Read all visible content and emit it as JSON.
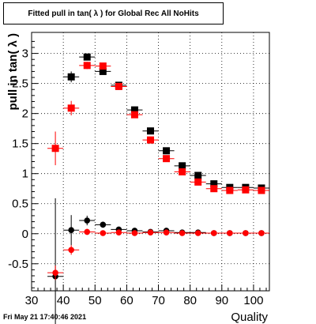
{
  "chart_data": {
    "type": "scatter",
    "title": "Fitted pull in tan( λ ) for Global Rec All NoHits",
    "xlabel": "Quality",
    "ylabel": "pull in tan( λ )",
    "xlim": [
      30,
      105
    ],
    "ylim": [
      -0.95,
      3.35
    ],
    "xticks": [
      30,
      40,
      50,
      60,
      70,
      80,
      90,
      100
    ],
    "yticks": [
      -0.5,
      0,
      0.5,
      1,
      1.5,
      2,
      2.5,
      3
    ],
    "grid": true,
    "series": [
      {
        "marker": "square",
        "color": "#000000",
        "x": [
          42.5,
          47.5,
          52.5,
          57.5,
          62.5,
          67.5,
          72.5,
          77.5,
          82.5,
          87.5,
          92.5,
          97.5,
          102.5
        ],
        "y": [
          2.61,
          2.94,
          2.7,
          2.47,
          2.06,
          1.71,
          1.38,
          1.13,
          0.97,
          0.83,
          0.77,
          0.77,
          0.76
        ],
        "yerr": [
          0.09,
          0.05,
          0.04,
          0.03,
          0.03,
          0.02,
          0.02,
          0.02,
          0.01,
          0.01,
          0.01,
          0.01,
          0.01
        ]
      },
      {
        "marker": "square",
        "color": "#ff0000",
        "x": [
          37.5,
          42.5,
          47.5,
          52.5,
          57.5,
          62.5,
          67.5,
          72.5,
          77.5,
          82.5,
          87.5,
          92.5,
          97.5,
          102.5
        ],
        "y": [
          1.42,
          2.09,
          2.8,
          2.79,
          2.45,
          1.98,
          1.56,
          1.25,
          1.03,
          0.86,
          0.75,
          0.72,
          0.73,
          0.72
        ],
        "yerr": [
          0.28,
          0.12,
          0.06,
          0.04,
          0.03,
          0.03,
          0.02,
          0.02,
          0.02,
          0.01,
          0.01,
          0.01,
          0.01,
          0.01
        ]
      },
      {
        "marker": "circle",
        "color": "#000000",
        "x": [
          37.5,
          42.5,
          47.5,
          52.5,
          57.5,
          62.5,
          67.5,
          72.5,
          77.5,
          82.5,
          87.5,
          92.5,
          97.5,
          102.5
        ],
        "y": [
          -0.71,
          0.06,
          0.22,
          0.15,
          0.07,
          0.05,
          0.03,
          0.05,
          0.02,
          0.02,
          0.01,
          0.01,
          0.01,
          0.01
        ],
        "yerr": [
          1.3,
          0.25,
          0.08,
          0.05,
          0.03,
          0.02,
          0.02,
          0.02,
          0.01,
          0.01,
          0.01,
          0.01,
          0.01,
          0.01
        ]
      },
      {
        "marker": "circle",
        "color": "#ff0000",
        "x": [
          37.5,
          42.5,
          47.5,
          52.5,
          57.5,
          62.5,
          67.5,
          72.5,
          77.5,
          82.5,
          87.5,
          92.5,
          97.5,
          102.5
        ],
        "y": [
          -0.65,
          -0.27,
          0.03,
          0.01,
          0.02,
          0.01,
          0.02,
          0.02,
          0.01,
          0.01,
          0.01,
          0.01,
          0.01,
          0.01
        ],
        "yerr": [
          0.12,
          0.08,
          0.05,
          0.03,
          0.02,
          0.02,
          0.01,
          0.01,
          0.01,
          0.01,
          0.01,
          0.01,
          0.01,
          0.01
        ]
      }
    ]
  },
  "footer": {
    "date": "Fri May 21 17:40:46 2021"
  }
}
